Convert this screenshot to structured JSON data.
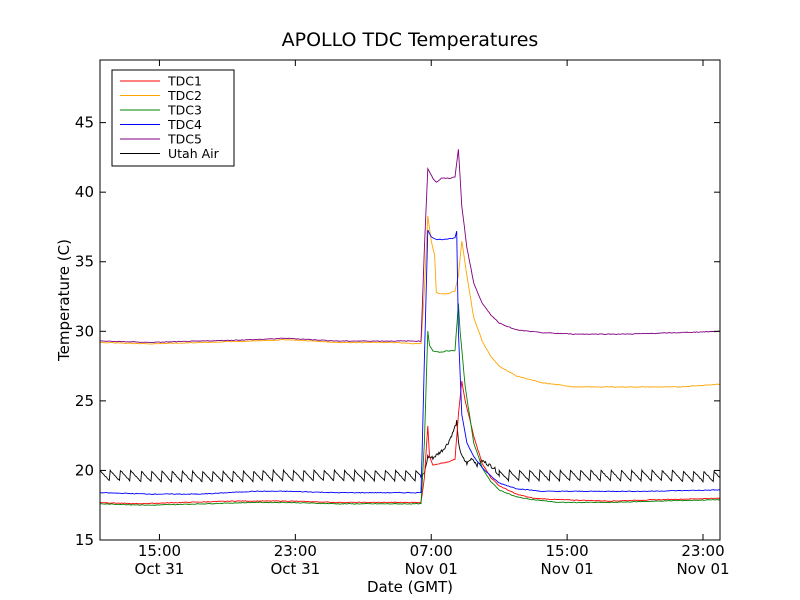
{
  "chart_data": {
    "type": "line",
    "title": "APOLLO TDC Temperatures",
    "xlabel": "Date (GMT)",
    "ylabel": "Temperature (C)",
    "x_unit": "hours since Oct 31 11:30 GMT",
    "xlim": [
      0,
      36.5
    ],
    "ylim": [
      15,
      49.5
    ],
    "y_ticks": [
      15,
      20,
      25,
      30,
      35,
      40,
      45
    ],
    "x_ticks": [
      {
        "x": 3.5,
        "label1": "15:00",
        "label2": "Oct 31"
      },
      {
        "x": 11.5,
        "label1": "23:00",
        "label2": "Oct 31"
      },
      {
        "x": 19.5,
        "label1": "07:00",
        "label2": "Nov 01"
      },
      {
        "x": 27.5,
        "label1": "15:00",
        "label2": "Nov 01"
      },
      {
        "x": 35.5,
        "label1": "23:00",
        "label2": "Nov 01"
      }
    ],
    "legend_position": "top-left",
    "series": [
      {
        "name": "TDC1",
        "color": "#ff0000",
        "points": [
          [
            0,
            17.7
          ],
          [
            2,
            17.6
          ],
          [
            5,
            17.7
          ],
          [
            8,
            17.8
          ],
          [
            11,
            17.8
          ],
          [
            14,
            17.7
          ],
          [
            17,
            17.7
          ],
          [
            18.9,
            17.7
          ],
          [
            19.1,
            19.5
          ],
          [
            19.3,
            23.2
          ],
          [
            19.4,
            21.0
          ],
          [
            19.6,
            20.4
          ],
          [
            20,
            20.5
          ],
          [
            20.5,
            20.6
          ],
          [
            20.9,
            20.8
          ],
          [
            21.1,
            24.0
          ],
          [
            21.3,
            26.4
          ],
          [
            21.5,
            25.0
          ],
          [
            22,
            22.5
          ],
          [
            22.5,
            20.5
          ],
          [
            23,
            19.5
          ],
          [
            23.5,
            18.9
          ],
          [
            24.5,
            18.3
          ],
          [
            25.5,
            18.0
          ],
          [
            27,
            17.9
          ],
          [
            30,
            17.8
          ],
          [
            33,
            17.9
          ],
          [
            36.5,
            18.0
          ]
        ]
      },
      {
        "name": "TDC2",
        "color": "#ffa500",
        "points": [
          [
            0,
            29.2
          ],
          [
            3,
            29.1
          ],
          [
            6,
            29.2
          ],
          [
            9,
            29.3
          ],
          [
            11,
            29.4
          ],
          [
            14,
            29.2
          ],
          [
            17,
            29.2
          ],
          [
            18.9,
            29.1
          ],
          [
            19.1,
            33.0
          ],
          [
            19.3,
            38.3
          ],
          [
            19.5,
            36.5
          ],
          [
            19.7,
            35.5
          ],
          [
            19.8,
            32.8
          ],
          [
            20,
            32.7
          ],
          [
            20.5,
            32.7
          ],
          [
            20.9,
            32.9
          ],
          [
            21.1,
            34.0
          ],
          [
            21.3,
            36.5
          ],
          [
            21.6,
            34.0
          ],
          [
            22,
            31.0
          ],
          [
            22.5,
            29.3
          ],
          [
            23,
            28.2
          ],
          [
            23.5,
            27.5
          ],
          [
            24.5,
            26.8
          ],
          [
            26,
            26.3
          ],
          [
            28,
            26.0
          ],
          [
            31,
            26.0
          ],
          [
            34,
            26.0
          ],
          [
            36.5,
            26.2
          ]
        ]
      },
      {
        "name": "TDC3",
        "color": "#008000",
        "points": [
          [
            0,
            17.6
          ],
          [
            3,
            17.5
          ],
          [
            6,
            17.6
          ],
          [
            9,
            17.7
          ],
          [
            11,
            17.7
          ],
          [
            14,
            17.6
          ],
          [
            17,
            17.6
          ],
          [
            18.9,
            17.6
          ],
          [
            19.1,
            22.0
          ],
          [
            19.3,
            30.0
          ],
          [
            19.4,
            29.0
          ],
          [
            19.6,
            28.6
          ],
          [
            20,
            28.5
          ],
          [
            20.5,
            28.6
          ],
          [
            20.9,
            28.6
          ],
          [
            21.1,
            32.0
          ],
          [
            21.2,
            30.0
          ],
          [
            21.5,
            26.0
          ],
          [
            22,
            22.0
          ],
          [
            22.5,
            20.2
          ],
          [
            23,
            19.2
          ],
          [
            23.5,
            18.6
          ],
          [
            24.5,
            18.1
          ],
          [
            25.5,
            17.9
          ],
          [
            27,
            17.7
          ],
          [
            30,
            17.7
          ],
          [
            33,
            17.8
          ],
          [
            36.5,
            17.9
          ]
        ]
      },
      {
        "name": "TDC4",
        "color": "#0000ff",
        "points": [
          [
            0,
            18.4
          ],
          [
            3,
            18.3
          ],
          [
            6,
            18.3
          ],
          [
            9,
            18.5
          ],
          [
            11,
            18.5
          ],
          [
            14,
            18.4
          ],
          [
            17,
            18.4
          ],
          [
            18.9,
            18.4
          ],
          [
            19.1,
            28.0
          ],
          [
            19.3,
            37.3
          ],
          [
            19.5,
            36.8
          ],
          [
            19.8,
            36.6
          ],
          [
            20.3,
            36.6
          ],
          [
            20.9,
            36.7
          ],
          [
            21.0,
            37.2
          ],
          [
            21.1,
            30.0
          ],
          [
            21.3,
            24.0
          ],
          [
            21.6,
            22.0
          ],
          [
            22,
            21.0
          ],
          [
            22.5,
            20.2
          ],
          [
            23,
            19.6
          ],
          [
            23.5,
            19.1
          ],
          [
            24.5,
            18.7
          ],
          [
            26,
            18.5
          ],
          [
            29,
            18.5
          ],
          [
            32,
            18.5
          ],
          [
            36.5,
            18.6
          ]
        ]
      },
      {
        "name": "TDC5",
        "color": "#800080",
        "points": [
          [
            0,
            29.3
          ],
          [
            3,
            29.2
          ],
          [
            6,
            29.3
          ],
          [
            9,
            29.4
          ],
          [
            11,
            29.5
          ],
          [
            14,
            29.3
          ],
          [
            17,
            29.3
          ],
          [
            18.9,
            29.3
          ],
          [
            19.1,
            36.0
          ],
          [
            19.3,
            41.7
          ],
          [
            19.6,
            41.0
          ],
          [
            19.8,
            40.7
          ],
          [
            20.1,
            41.0
          ],
          [
            20.6,
            41.0
          ],
          [
            20.9,
            41.1
          ],
          [
            21.1,
            43.1
          ],
          [
            21.3,
            39.0
          ],
          [
            21.6,
            36.0
          ],
          [
            22,
            33.5
          ],
          [
            22.5,
            32.0
          ],
          [
            23,
            31.2
          ],
          [
            23.5,
            30.6
          ],
          [
            24.5,
            30.1
          ],
          [
            26,
            29.9
          ],
          [
            28,
            29.8
          ],
          [
            31,
            29.8
          ],
          [
            34,
            29.9
          ],
          [
            36.5,
            30.0
          ]
        ]
      }
    ],
    "air_series": {
      "name": "Utah Air",
      "color": "#000000",
      "base": 19.6,
      "amplitude": 0.8,
      "cycle_hours": 0.6,
      "segments": [
        [
          0,
          18.9
        ],
        [
          23.5,
          36.5
        ]
      ],
      "points": [
        [
          18.9,
          19.5
        ],
        [
          19.1,
          19.8
        ],
        [
          19.3,
          21.0
        ],
        [
          19.6,
          20.9
        ],
        [
          19.9,
          21.2
        ],
        [
          20.2,
          21.5
        ],
        [
          20.5,
          22.0
        ],
        [
          20.8,
          22.8
        ],
        [
          21.0,
          23.5
        ],
        [
          21.1,
          22.0
        ],
        [
          21.3,
          21.0
        ],
        [
          21.6,
          20.5
        ],
        [
          21.9,
          20.9
        ],
        [
          22.2,
          20.4
        ],
        [
          22.5,
          20.7
        ],
        [
          22.9,
          20.4
        ],
        [
          23.2,
          20.2
        ],
        [
          23.5,
          19.6
        ]
      ]
    }
  }
}
